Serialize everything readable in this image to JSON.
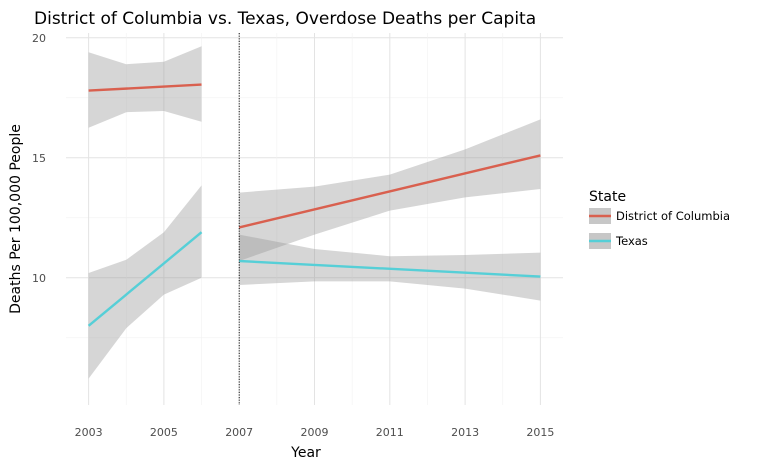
{
  "chart_data": {
    "type": "line",
    "title": "District of Columbia vs. Texas, Overdose Deaths per Capita",
    "xlabel": "Year",
    "ylabel": "Deaths Per 100,000 People",
    "xlim": [
      2002.4,
      2015.6
    ],
    "ylim": [
      4.7,
      20.2
    ],
    "x_ticks": [
      2003,
      2005,
      2007,
      2009,
      2011,
      2013,
      2015
    ],
    "y_ticks": [
      10,
      15,
      20
    ],
    "grid": true,
    "vline": 2007,
    "legend": {
      "title": "State",
      "position": "right"
    },
    "series": [
      {
        "name": "District of Columbia",
        "color": "#d9604f",
        "segments": [
          {
            "x": [
              2003,
              2006
            ],
            "y": [
              17.8,
              18.05
            ],
            "band_x": [
              2003,
              2004,
              2005,
              2006
            ],
            "band_lower": [
              16.25,
              16.9,
              16.95,
              16.5
            ],
            "band_upper": [
              19.4,
              18.9,
              19.0,
              19.65
            ]
          },
          {
            "x": [
              2007,
              2015
            ],
            "y": [
              12.1,
              15.1
            ],
            "band_x": [
              2007,
              2009,
              2011,
              2013,
              2015
            ],
            "band_lower": [
              10.7,
              11.8,
              12.8,
              13.35,
              13.7
            ],
            "band_upper": [
              13.55,
              13.8,
              14.3,
              15.35,
              16.6
            ]
          }
        ]
      },
      {
        "name": "Texas",
        "color": "#56cfd7",
        "segments": [
          {
            "x": [
              2003,
              2006
            ],
            "y": [
              8.0,
              11.9
            ],
            "band_x": [
              2003,
              2004,
              2005,
              2006
            ],
            "band_lower": [
              5.8,
              7.9,
              9.3,
              10.0
            ],
            "band_upper": [
              10.2,
              10.75,
              11.9,
              13.85
            ]
          },
          {
            "x": [
              2007,
              2015
            ],
            "y": [
              10.7,
              10.05
            ],
            "band_x": [
              2007,
              2009,
              2011,
              2013,
              2015
            ],
            "band_lower": [
              9.7,
              9.85,
              9.85,
              9.55,
              9.05
            ],
            "band_upper": [
              11.8,
              11.2,
              10.9,
              10.95,
              11.05
            ]
          }
        ]
      }
    ]
  }
}
